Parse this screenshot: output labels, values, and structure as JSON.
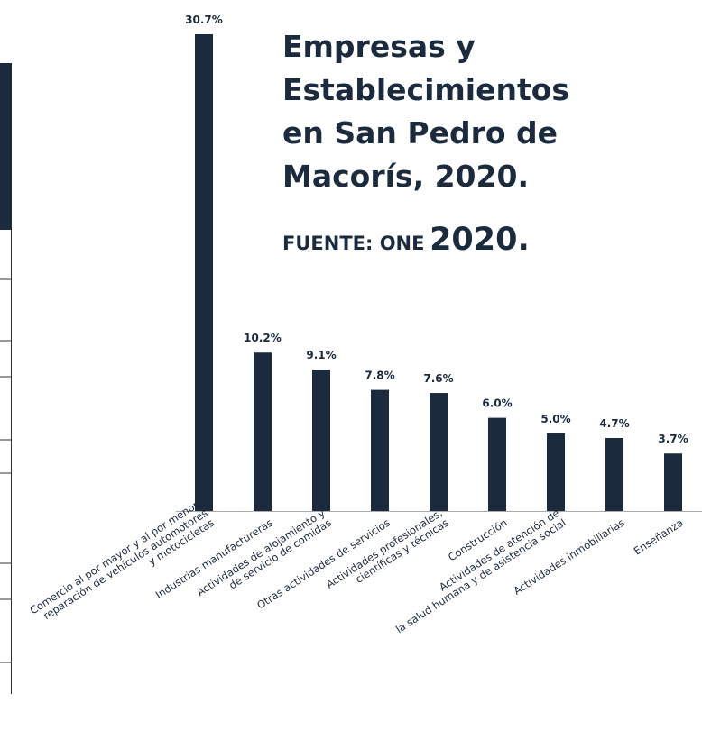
{
  "chart_data": {
    "type": "bar",
    "title": "Empresas y\nEstablecimientos\nen San Pedro de\nMacorís, 2020.",
    "source": "FUENTE: ONE",
    "source_year": "2020.",
    "categories": [
      "Comercio al por mayor y al por menor;\nreparación de vehículos automotores\ny motocicletas",
      "Industrias manufactureras",
      "Actividades de alojamiento y\nde servicio de comidas",
      "Otras actividades de servicios",
      "Actividades profesionales,\ncientíficas y técnicas",
      "Construcción",
      "Actividades de atención de\nla salud humana y de asistencia social",
      "Actividades inmobiliarias",
      "Enseñanza"
    ],
    "values": [
      30.7,
      10.2,
      9.1,
      7.8,
      7.6,
      6.0,
      5.0,
      4.7,
      3.7
    ],
    "value_labels": [
      "30.7%",
      "10.2%",
      "9.1%",
      "7.8%",
      "7.6%",
      "6.0%",
      "5.0%",
      "4.7%",
      "3.7%"
    ],
    "color": "#1b2a3d"
  }
}
